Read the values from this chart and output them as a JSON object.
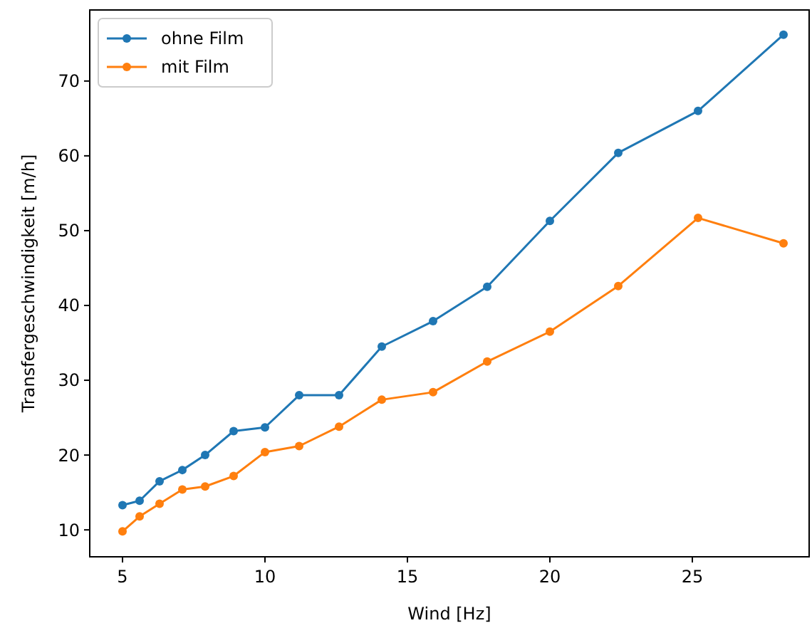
{
  "chart_data": {
    "type": "line",
    "xlabel": "Wind [Hz]",
    "ylabel": "Transfergeschwindigkeit [m/h]",
    "x": [
      5.0,
      5.6,
      6.3,
      7.1,
      7.9,
      8.9,
      10.0,
      11.2,
      12.6,
      14.1,
      15.9,
      17.8,
      20.0,
      22.4,
      25.2,
      28.2
    ],
    "series": [
      {
        "name": "ohne Film",
        "color": "#1f77b4",
        "values": [
          13.3,
          13.9,
          16.5,
          18,
          20,
          23.2,
          23.7,
          28,
          28,
          34.5,
          37.9,
          42.5,
          51.3,
          60.4,
          66,
          76.2
        ]
      },
      {
        "name": "mit Film",
        "color": "#ff7f0e",
        "values": [
          9.8,
          11.8,
          13.5,
          15.4,
          15.8,
          17.2,
          20.4,
          21.2,
          23.8,
          27.4,
          28.4,
          32.5,
          36.5,
          42.6,
          51.7,
          48.3
        ]
      }
    ],
    "xlim": [
      3.85,
      29.1
    ],
    "ylim": [
      6.4,
      79.5
    ],
    "xticks": [
      5,
      10,
      15,
      20,
      25
    ],
    "yticks": [
      10,
      20,
      30,
      40,
      50,
      60,
      70
    ],
    "marker": "circle",
    "line_style": "solid",
    "legend": "top left",
    "grid": false
  }
}
